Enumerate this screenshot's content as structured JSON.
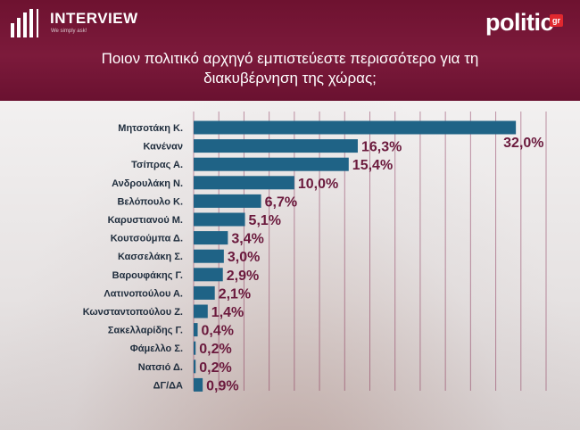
{
  "header": {
    "interview_logo_text": "INTERVIEW",
    "interview_tagline": "We simply ask!",
    "politic_logo_text": "politic",
    "politic_logo_badge": "gr",
    "title_line1": "Ποιον πολιτικό αρχηγό εμπιστεύεστε περισσότερο για τη",
    "title_line2": "διακυβέρνηση της χώρας;"
  },
  "colors": {
    "header_bg": "#7c1a3b",
    "bar": "#1f6386",
    "value_label": "#6b1a3d",
    "grid": "#7d1a45"
  },
  "chart_data": {
    "type": "bar",
    "orientation": "horizontal",
    "title": "Ποιον πολιτικό αρχηγό εμπιστεύεστε περισσότερο για τη διακυβέρνηση της χώρας;",
    "categories": [
      "Μητσοτάκη Κ.",
      "Κανέναν",
      "Τσίπρας Α.",
      "Ανδρουλάκη Ν.",
      "Βελόπουλο Κ.",
      "Καρυστιανού Μ.",
      "Κουτσούμπα Δ.",
      "Κασσελάκη Σ.",
      "Βαρουφάκης Γ.",
      "Λατινοπούλου Α.",
      "Κωνσταντοπούλου Ζ.",
      "Σακελλαρίδης Γ.",
      "Φάμελλο Σ.",
      "Νατσιό Δ.",
      "ΔΓ/ΔΑ"
    ],
    "values": [
      32.0,
      16.3,
      15.4,
      10.0,
      6.7,
      5.1,
      3.4,
      3.0,
      2.9,
      2.1,
      1.4,
      0.4,
      0.2,
      0.2,
      0.9
    ],
    "value_labels": [
      "32,0%",
      "16,3%",
      "15,4%",
      "10,0%",
      "6,7%",
      "5,1%",
      "3,4%",
      "3,0%",
      "2,9%",
      "2,1%",
      "1,4%",
      "0,4%",
      "0,2%",
      "0,2%",
      "0,9%"
    ],
    "xlim": [
      0,
      35
    ],
    "grid": true,
    "legend": "none"
  }
}
